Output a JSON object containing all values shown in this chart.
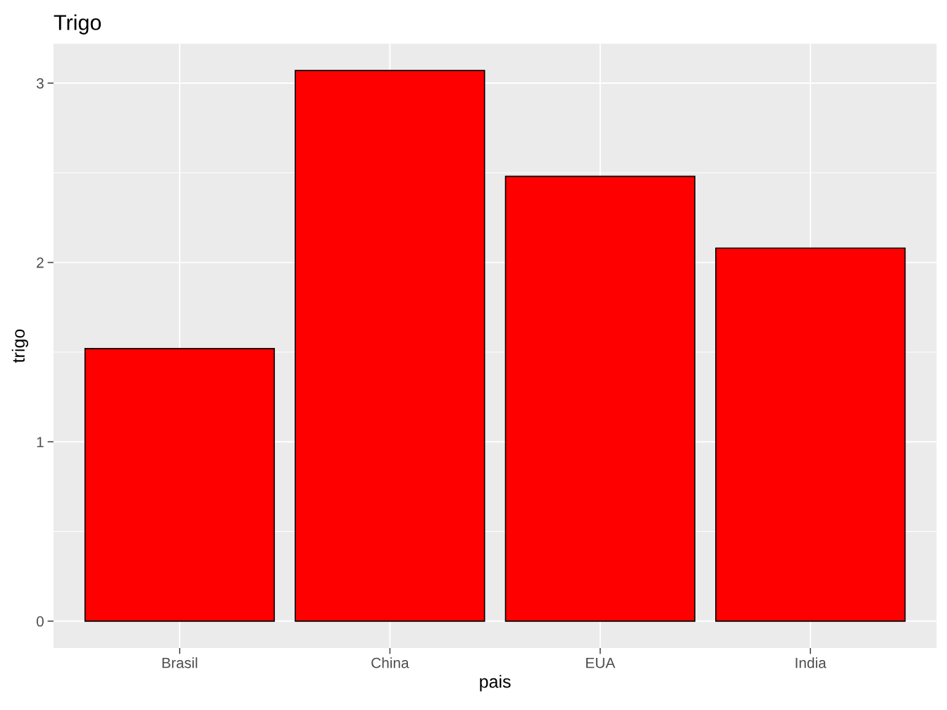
{
  "chart_data": {
    "type": "bar",
    "title": "Trigo",
    "xlabel": "pais",
    "ylabel": "trigo",
    "categories": [
      "Brasil",
      "China",
      "EUA",
      "India"
    ],
    "values": [
      1.52,
      3.07,
      2.48,
      2.08
    ],
    "color": "#ff0000",
    "ylim": [
      -0.15,
      3.22
    ],
    "yticks": [
      0,
      1,
      2,
      3
    ],
    "grid": true
  }
}
